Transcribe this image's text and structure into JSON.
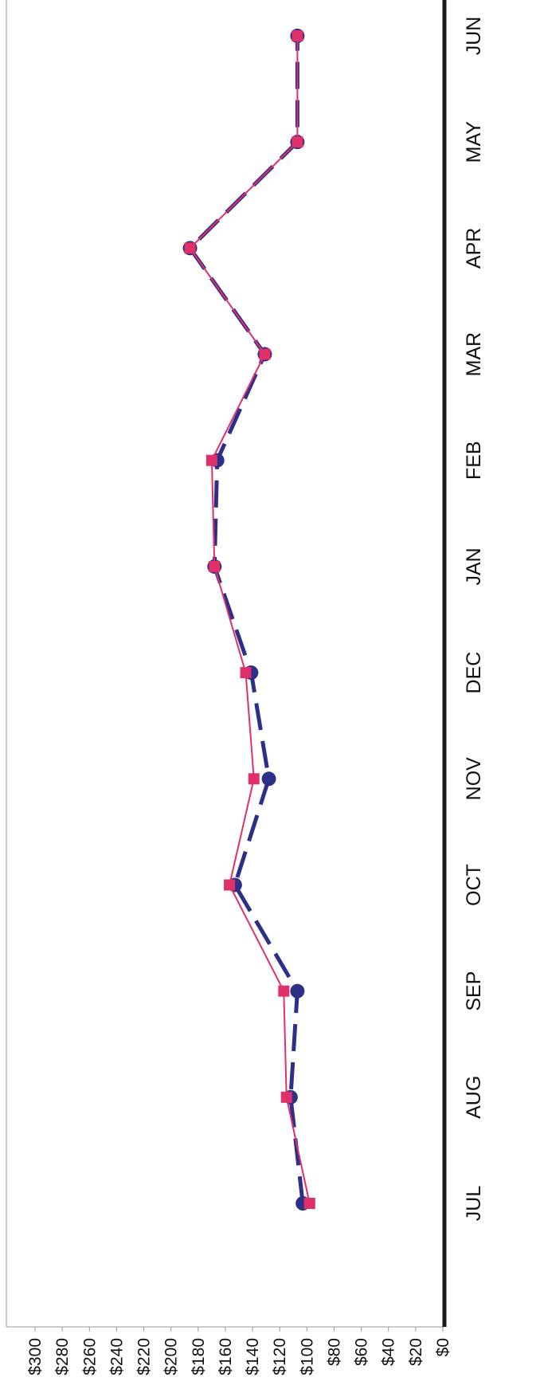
{
  "chart_data": {
    "type": "line",
    "orientation": "rotated-90-clockwise",
    "categories": [
      "JUL",
      "AUG",
      "SEP",
      "OCT",
      "NOV",
      "DEC",
      "JAN",
      "FEB",
      "MAR",
      "APR",
      "MAY",
      "JUN"
    ],
    "series": [
      {
        "color": "#2e2f86",
        "line_style": "dashed",
        "marker": "circle",
        "values": [
          103,
          112,
          107,
          153,
          128,
          141,
          168,
          166,
          131,
          186,
          107,
          107
        ]
      },
      {
        "color": "#e0306a",
        "line_style": "solid",
        "marker": "square",
        "values": [
          98,
          115,
          117,
          157,
          139,
          145,
          168,
          170,
          131,
          186,
          107,
          107
        ]
      }
    ],
    "y_tick_labels": [
      "$0",
      "$20",
      "$40",
      "$60",
      "$80",
      "$100",
      "$120",
      "$140",
      "$160",
      "$180",
      "$200",
      "$220",
      "$240",
      "$260",
      "$280",
      "$300"
    ],
    "ylim": [
      0,
      300
    ],
    "grid": false,
    "legend": "none"
  }
}
